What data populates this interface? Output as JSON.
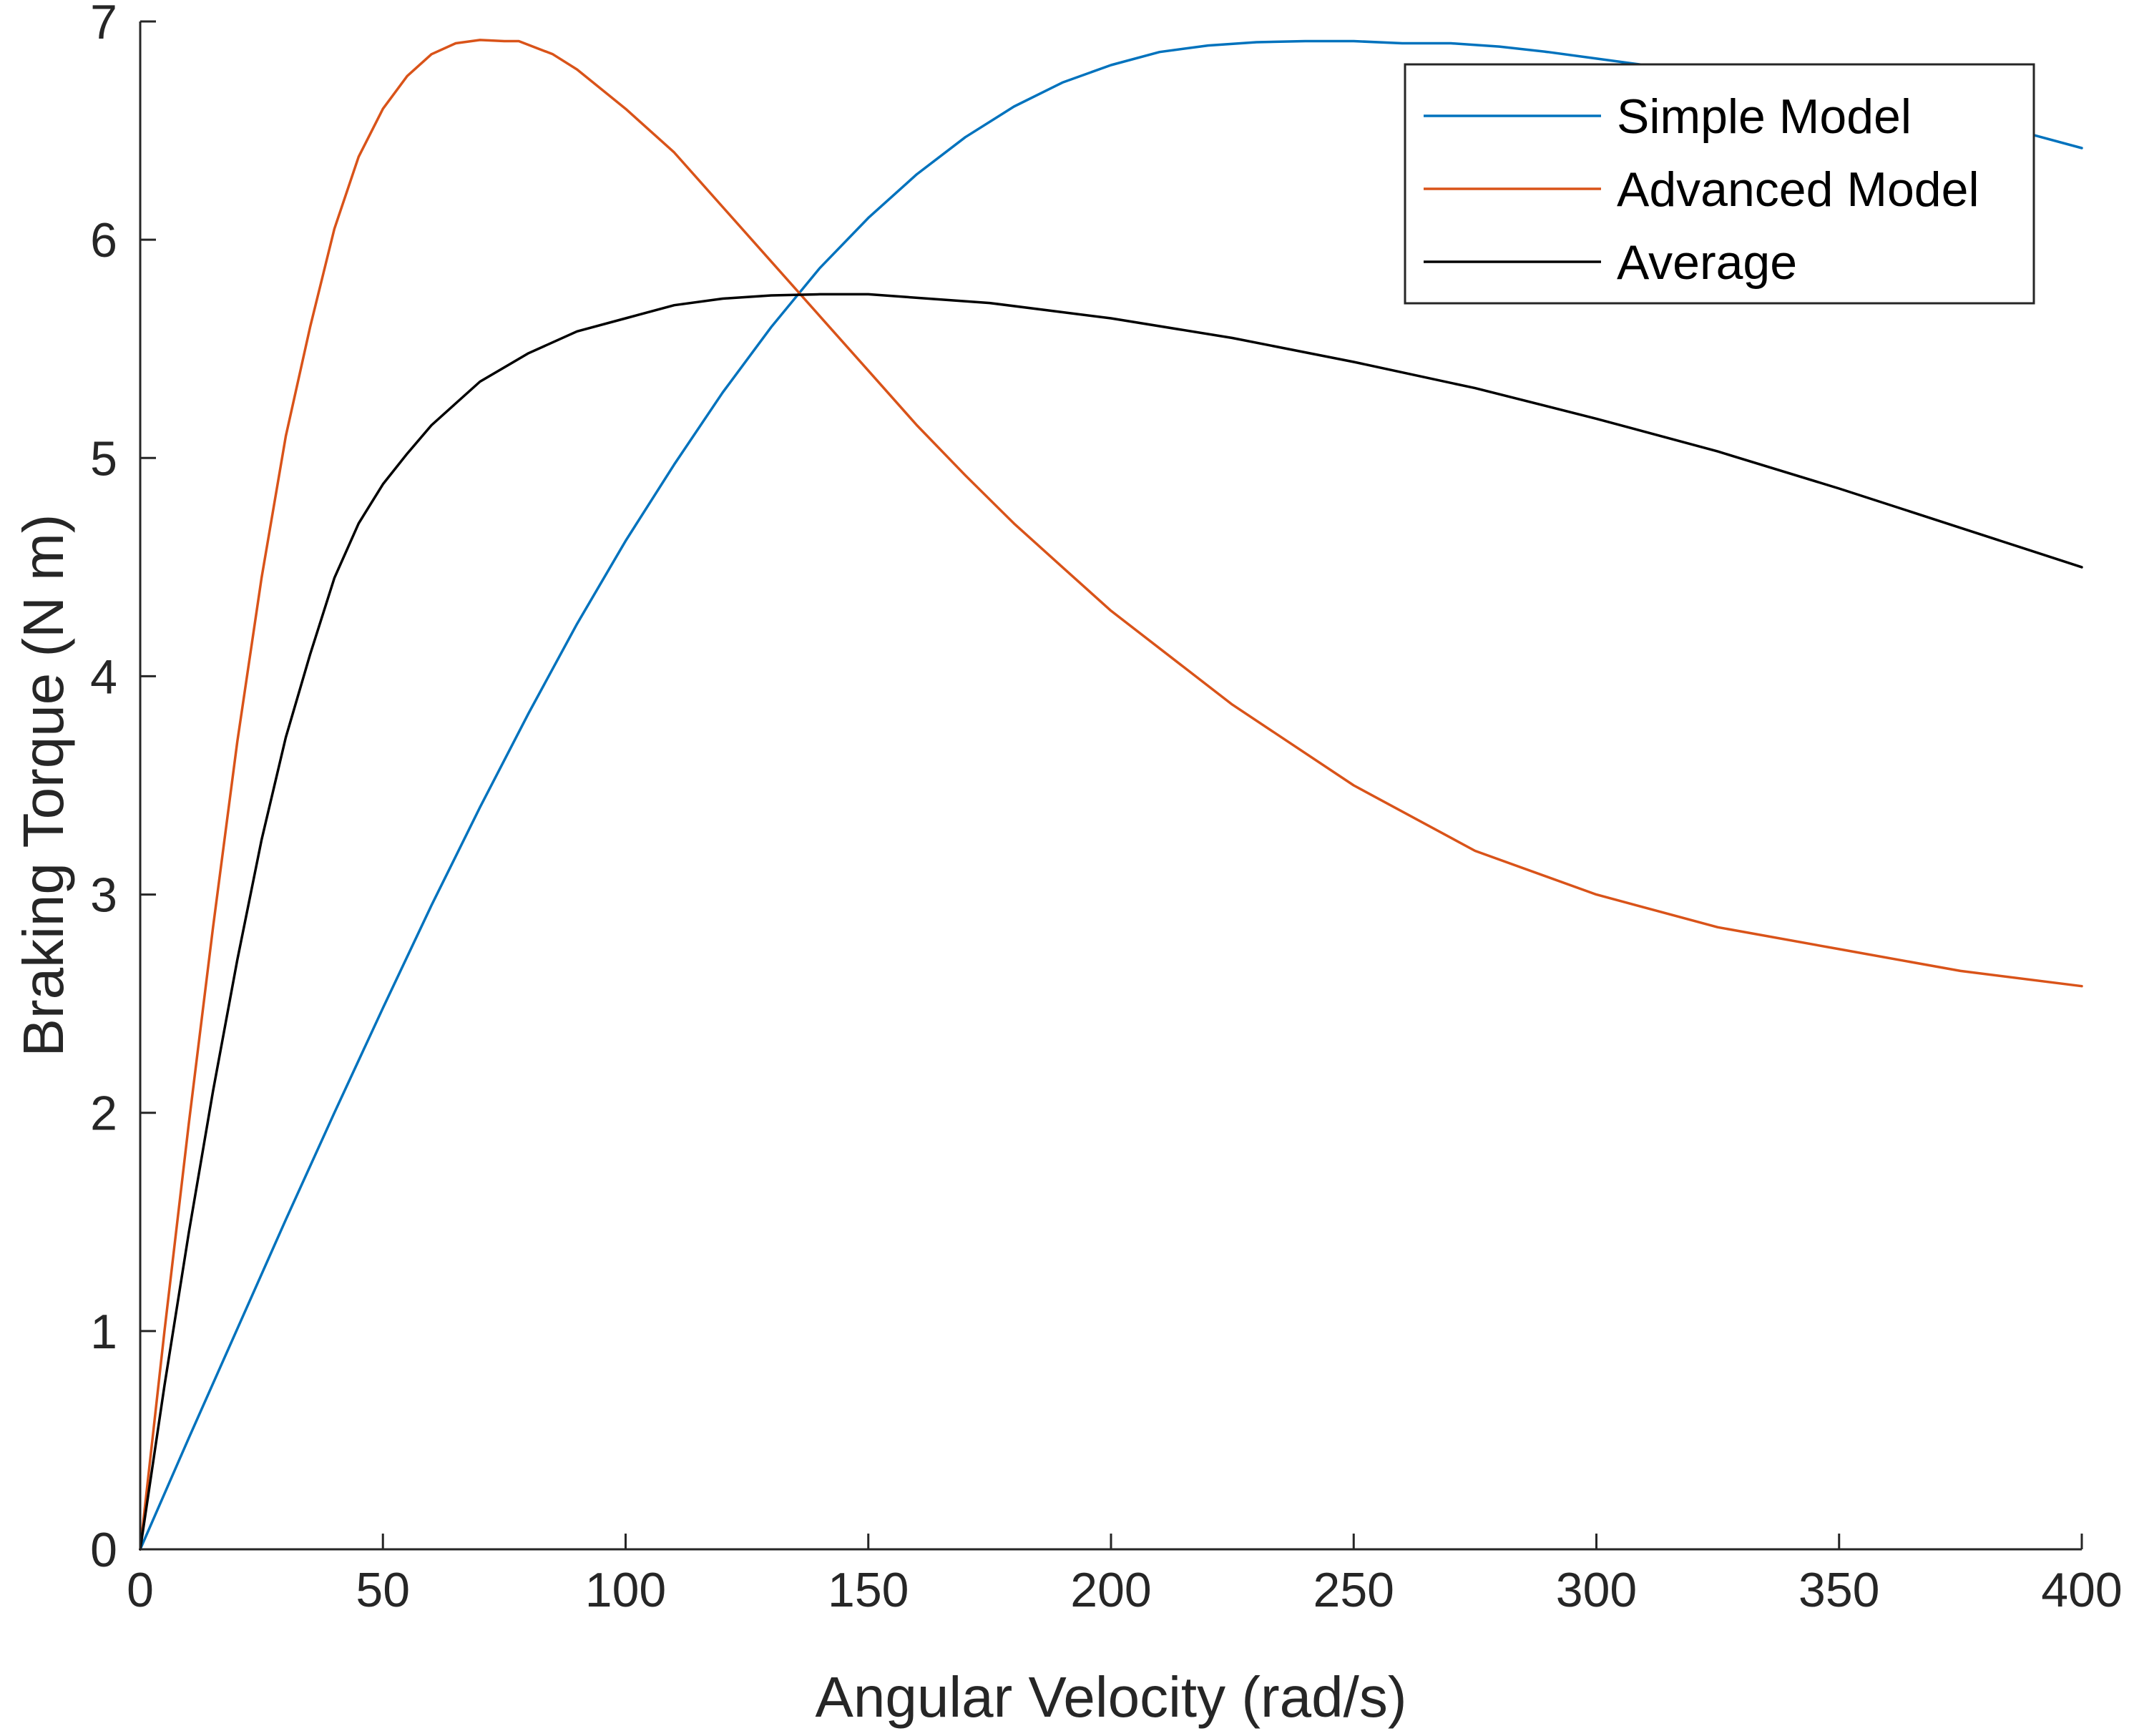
{
  "chart_data": {
    "type": "line",
    "title": "",
    "xlabel": "Angular Velocity (rad/s)",
    "ylabel": "Braking Torque (N m)",
    "xlim": [
      0,
      400
    ],
    "ylim": [
      0,
      7
    ],
    "xticks": [
      0,
      50,
      100,
      150,
      200,
      250,
      300,
      350,
      400
    ],
    "yticks": [
      0,
      1,
      2,
      3,
      4,
      5,
      6,
      7
    ],
    "xtick_labels": [
      "0",
      "50",
      "100",
      "150",
      "200",
      "250",
      "300",
      "350",
      "400"
    ],
    "ytick_labels": [
      "0",
      "1",
      "2",
      "3",
      "4",
      "5",
      "6",
      "7"
    ],
    "grid": false,
    "legend_position": "top-right",
    "series": [
      {
        "name": "Simple Model",
        "color": "#0072BD",
        "x": [
          0,
          10,
          20,
          30,
          40,
          50,
          60,
          70,
          80,
          90,
          100,
          110,
          120,
          130,
          140,
          150,
          160,
          170,
          180,
          190,
          200,
          210,
          220,
          230,
          240,
          250,
          260,
          270,
          280,
          290,
          300,
          310,
          320,
          330,
          340,
          350,
          360,
          370,
          380,
          390,
          400
        ],
        "y": [
          0,
          0.51,
          1.01,
          1.51,
          2.0,
          2.48,
          2.95,
          3.4,
          3.83,
          4.24,
          4.62,
          4.97,
          5.3,
          5.6,
          5.87,
          6.1,
          6.3,
          6.47,
          6.61,
          6.72,
          6.8,
          6.86,
          6.89,
          6.905,
          6.91,
          6.91,
          6.9,
          6.9,
          6.885,
          6.86,
          6.83,
          6.8,
          6.77,
          6.74,
          6.7,
          6.66,
          6.62,
          6.58,
          6.53,
          6.48,
          6.42
        ]
      },
      {
        "name": "Advanced Model",
        "color": "#D95319",
        "x": [
          0,
          5,
          10,
          15,
          20,
          25,
          30,
          35,
          40,
          45,
          50,
          55,
          60,
          65,
          70,
          75,
          78,
          85,
          90,
          100,
          110,
          120,
          130,
          140,
          150,
          160,
          170,
          180,
          190,
          200,
          225,
          250,
          275,
          300,
          325,
          350,
          375,
          400
        ],
        "y": [
          0,
          1.0,
          1.95,
          2.85,
          3.7,
          4.45,
          5.1,
          5.6,
          6.05,
          6.38,
          6.6,
          6.75,
          6.85,
          6.9,
          6.915,
          6.91,
          6.91,
          6.85,
          6.78,
          6.6,
          6.4,
          6.15,
          5.9,
          5.65,
          5.4,
          5.15,
          4.92,
          4.7,
          4.5,
          4.3,
          3.87,
          3.5,
          3.2,
          3.0,
          2.85,
          2.75,
          2.65,
          2.58
        ]
      },
      {
        "name": "Average",
        "color": "#000000",
        "x": [
          0,
          5,
          10,
          15,
          20,
          25,
          30,
          35,
          40,
          45,
          50,
          55,
          60,
          65,
          70,
          80,
          90,
          100,
          110,
          120,
          130,
          140,
          145,
          150,
          175,
          200,
          225,
          250,
          275,
          300,
          325,
          350,
          375,
          400
        ],
        "y": [
          0,
          0.75,
          1.45,
          2.1,
          2.7,
          3.25,
          3.72,
          4.1,
          4.45,
          4.7,
          4.88,
          5.02,
          5.15,
          5.25,
          5.35,
          5.48,
          5.58,
          5.64,
          5.7,
          5.73,
          5.745,
          5.75,
          5.75,
          5.75,
          5.71,
          5.64,
          5.55,
          5.44,
          5.32,
          5.18,
          5.03,
          4.86,
          4.68,
          4.5
        ]
      }
    ]
  }
}
